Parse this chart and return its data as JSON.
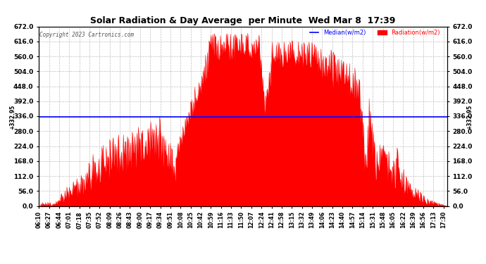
{
  "title": "Solar Radiation & Day Average  per Minute  Wed Mar 8  17:39",
  "copyright": "Copyright 2023 Cartronics.com",
  "median_value": 332.95,
  "y_min": 0.0,
  "y_max": 672.0,
  "y_ticks": [
    0.0,
    56.0,
    112.0,
    168.0,
    224.0,
    280.0,
    336.0,
    392.0,
    448.0,
    504.0,
    560.0,
    616.0,
    672.0
  ],
  "background_color": "#ffffff",
  "fill_color": "#ff0000",
  "median_color": "#0000ff",
  "title_color": "#000000",
  "copyright_color": "#000000",
  "legend_median_color": "#0000ff",
  "legend_radiation_color": "#ff0000",
  "grid_color": "#b0b0b0",
  "tick_label_color": "#000000",
  "median_label": "Median(w/m2)",
  "radiation_label": "Radiation(w/m2)"
}
